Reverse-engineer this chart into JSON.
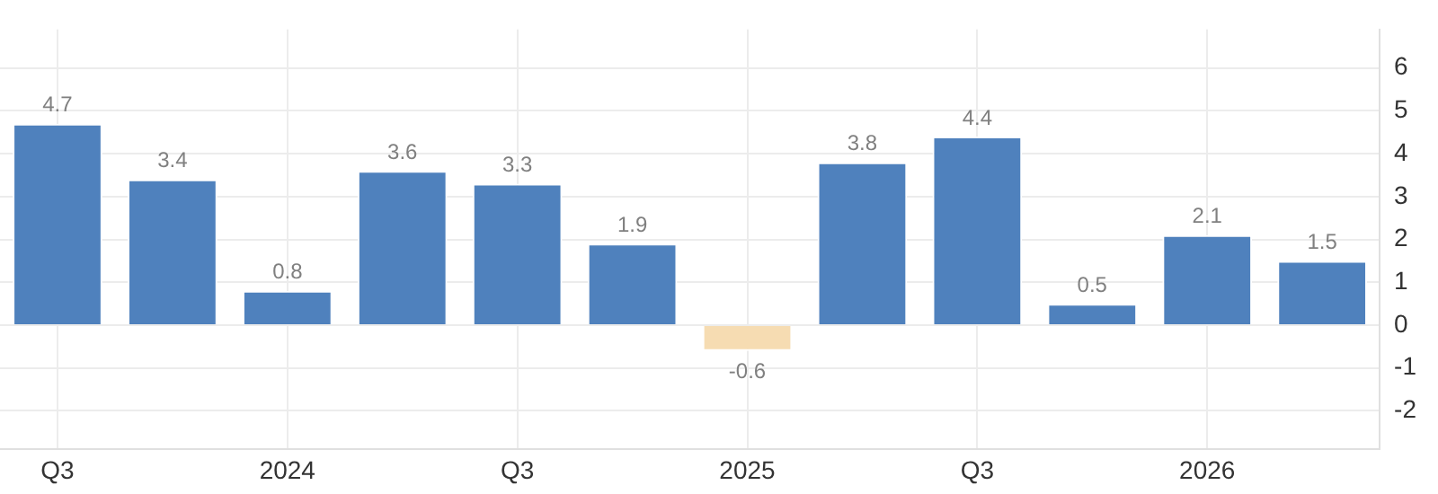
{
  "chart_data": {
    "type": "bar",
    "categories": [
      "Q3",
      null,
      "2024",
      null,
      "Q3",
      null,
      "2025",
      null,
      "Q3",
      null,
      "2026",
      null
    ],
    "values": [
      4.7,
      3.4,
      0.8,
      3.6,
      3.3,
      1.9,
      -0.6,
      3.8,
      4.4,
      0.5,
      2.1,
      1.5
    ],
    "colors": [
      "#4f81bd",
      "#4f81bd",
      "#4f81bd",
      "#4f81bd",
      "#4f81bd",
      "#4f81bd",
      "#f6dcb2",
      "#4f81bd",
      "#4f81bd",
      "#4f81bd",
      "#4f81bd",
      "#4f81bd"
    ],
    "ylim": [
      -2.9,
      6.9
    ],
    "yticks": [
      -2,
      -1,
      0,
      1,
      2,
      3,
      4,
      5,
      6
    ],
    "grid": true,
    "data_labels": true,
    "legend": false
  }
}
